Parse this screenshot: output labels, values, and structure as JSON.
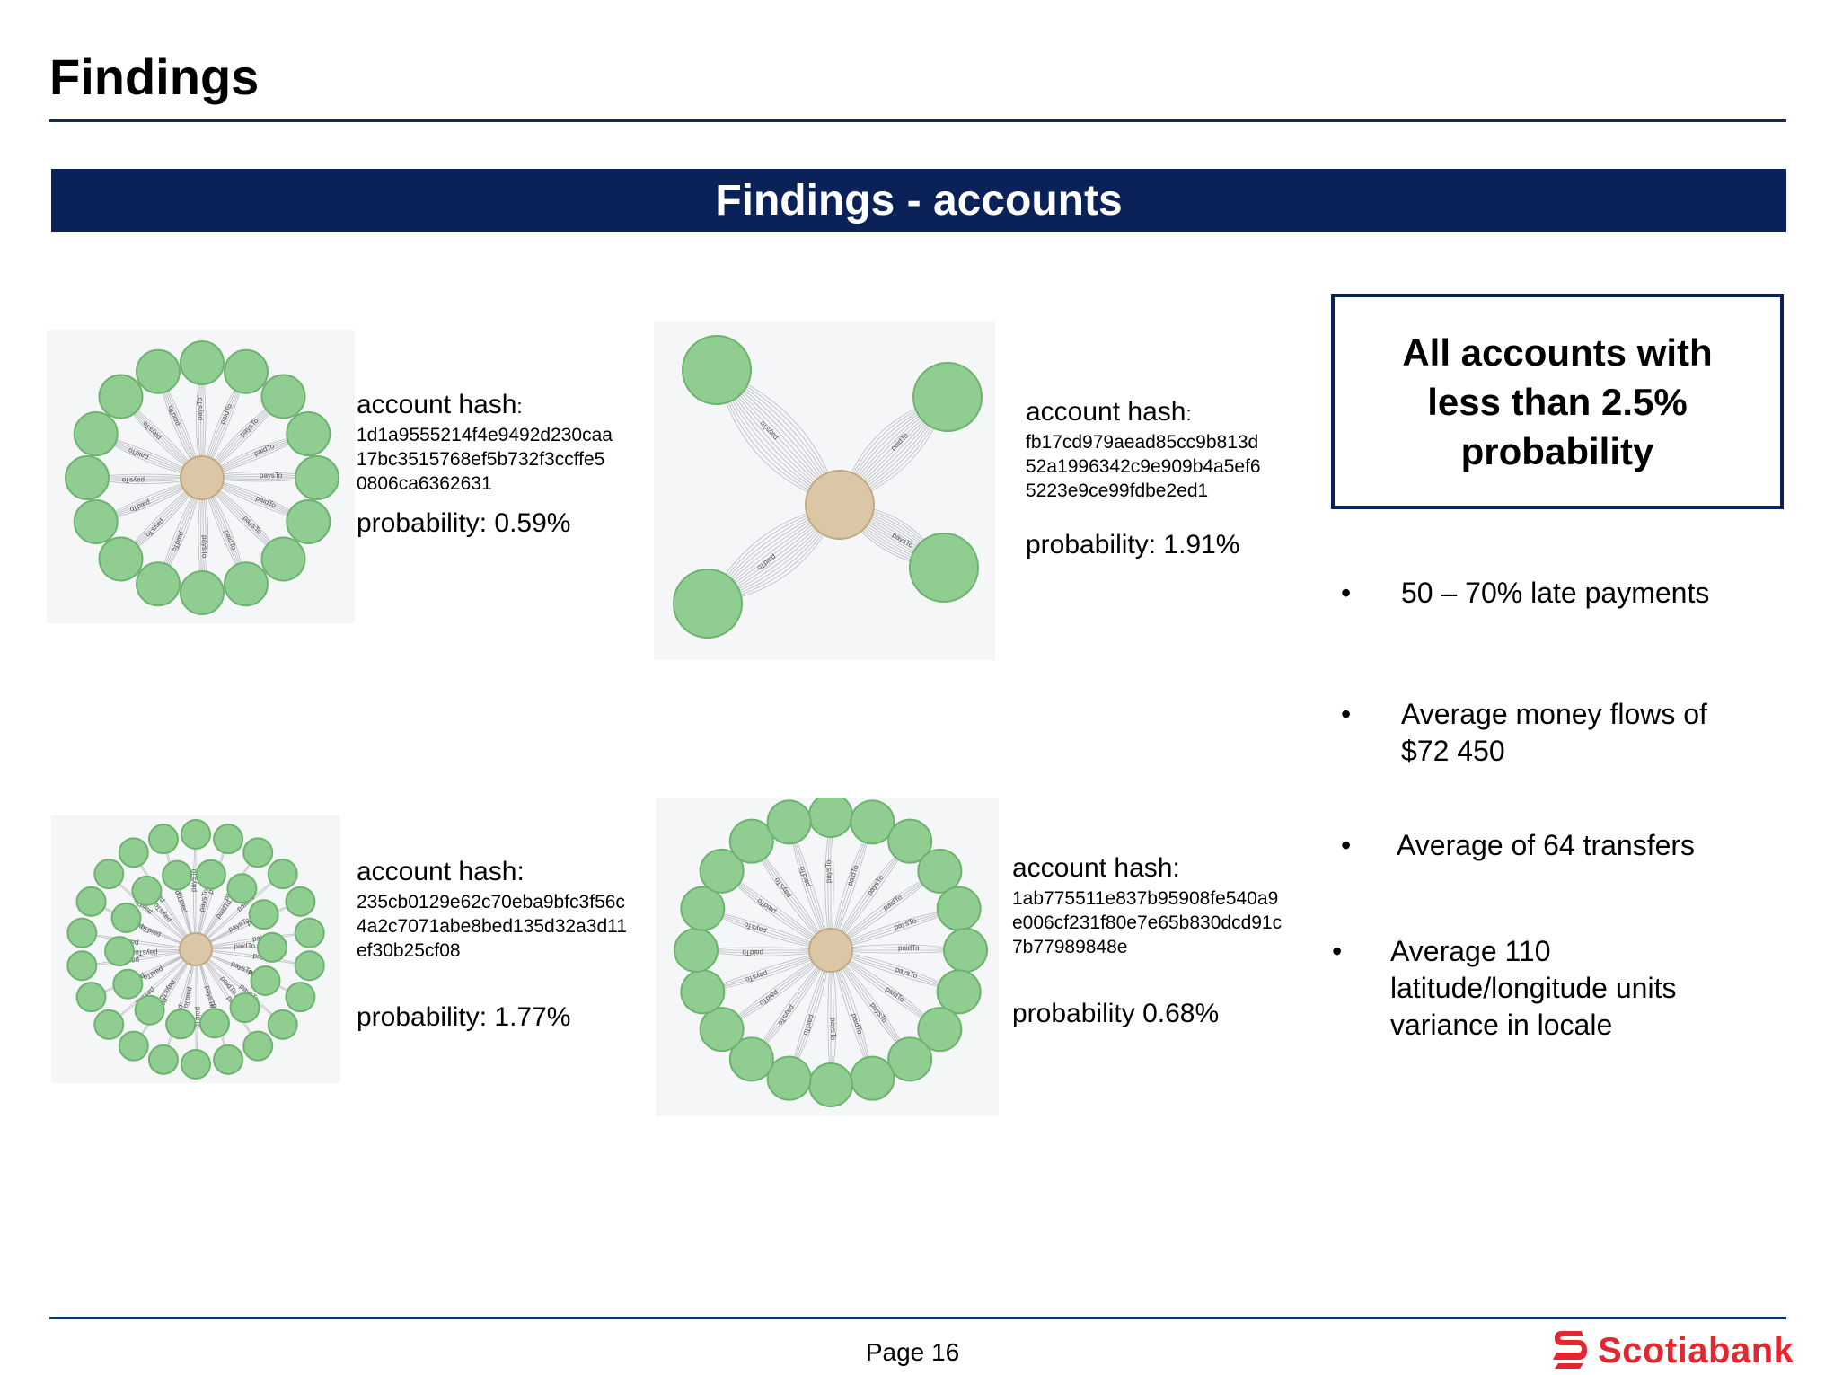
{
  "page": {
    "title": "Findings",
    "banner": "Findings - accounts",
    "page_number": "Page 16",
    "brand": "Scotiabank",
    "logo_icon": "scotiabank-s-icon",
    "colors": {
      "navy": "#0b2258",
      "brand_red": "#e4262f",
      "node_green": "#8fce90",
      "center_node": "#dbc7a6"
    }
  },
  "accounts": [
    {
      "label": "account hash",
      "colon": ":",
      "hash_lines": [
        "1d1a9555214f4e9492d230caa",
        "17bc3515768ef5b732f3ccffe5",
        "0806ca6362631"
      ],
      "probability": "probability: 0.59%"
    },
    {
      "label": "account hash",
      "colon": ":",
      "hash_lines": [
        "fb17cd979aead85cc9b813d",
        "52a1996342c9e909b4a5ef6",
        "5223e9ce99fdbe2ed1"
      ],
      "probability": "probability: 1.91%"
    },
    {
      "label": "account hash:",
      "colon": "",
      "hash_lines": [
        "235cb0129e62c70eba9bfc3f56c",
        "4a2c7071abe8bed135d32a3d11",
        "ef30b25cf08"
      ],
      "probability": "probability: 1.77%"
    },
    {
      "label": "account hash:",
      "colon": "",
      "hash_lines": [
        "1ab775511e837b95908fe540a9",
        "e006cf231f80e7e65b830dcd91c",
        "7b77989848e"
      ],
      "probability": "probability 0.68%"
    }
  ],
  "callout": {
    "lines": [
      "All accounts with",
      "less than 2.5%",
      "probability"
    ]
  },
  "bullets": {
    "marker": "•",
    "items": [
      {
        "lines": [
          "50 – 70% late payments"
        ]
      },
      {
        "lines": [
          "Average money flows of",
          "$72 450"
        ]
      },
      {
        "lines": [
          "Average of 64 transfers"
        ]
      },
      {
        "lines": [
          "Average 110",
          "latitude/longitude units",
          "variance in locale"
        ]
      }
    ]
  },
  "graphs": [
    {
      "edge_labels": [
        "paysTo",
        "paidTo"
      ]
    },
    {
      "edge_labels": [
        "paysTo",
        "paidTo"
      ]
    },
    {
      "edge_labels": [
        "paysTo",
        "paidTo"
      ]
    },
    {
      "edge_labels": [
        "paysTo",
        "paidTo"
      ]
    }
  ]
}
